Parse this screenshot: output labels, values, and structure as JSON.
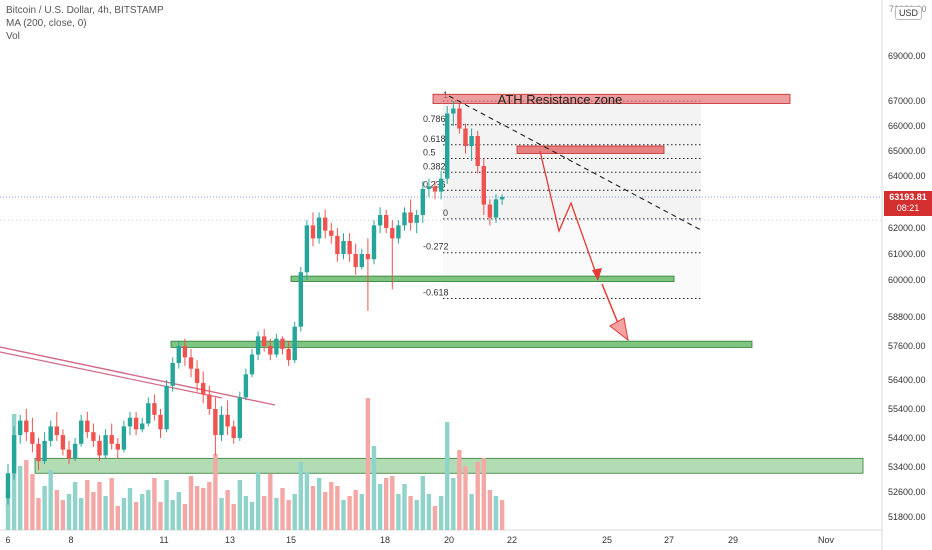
{
  "legend": {
    "symbol": "Bitcoin / U.S. Dollar, 4h, BITSTAMP",
    "ma": "MA (200, close, 0)",
    "vol": "Vol"
  },
  "currency_button": "USD",
  "last_price": "63193.81",
  "countdown": "08:21",
  "colors": {
    "bull": "#26a69a",
    "bear": "#ef5350",
    "vol_bull": "#8fd3cb",
    "vol_bear": "#f4a8a6",
    "zone_red": "#e57373",
    "zone_green": "#66bb6a",
    "arrow": "#e53935",
    "trendline": "#d46a86"
  },
  "chart_data": {
    "type": "candlestick",
    "symbol": "BTCUSD",
    "exchange": "BITSTAMP",
    "interval": "4h",
    "ylim": [
      51400,
      71000
    ],
    "y_ticks": [
      51800,
      52600,
      53400,
      54400,
      55400,
      56400,
      57600,
      58800,
      60000,
      61000,
      62000,
      63000,
      64000,
      65000,
      66000,
      67000,
      69000
    ],
    "y_tick_labels": [
      "51800.00",
      "52600.00",
      "53400.00",
      "54400.00",
      "55400.00",
      "56400.00",
      "57600.00",
      "58800.00",
      "60000.00",
      "61000.00",
      "62000.00",
      "63000.00",
      "64000.00",
      "65000.00",
      "66000.00",
      "67000.00",
      "69000.00"
    ],
    "x_tick_labels": [
      "6",
      "8",
      "11",
      "13",
      "15",
      "18",
      "20",
      "22",
      "25",
      "27",
      "29",
      "Nov"
    ],
    "candles": [
      [
        52400,
        53500,
        52200,
        53200
      ],
      [
        53200,
        54800,
        53000,
        54500
      ],
      [
        54500,
        55200,
        54200,
        55000
      ],
      [
        55000,
        55400,
        54300,
        54600
      ],
      [
        54600,
        55100,
        53900,
        54200
      ],
      [
        54200,
        54400,
        53300,
        53600
      ],
      [
        53600,
        54600,
        53500,
        54300
      ],
      [
        54300,
        55000,
        54100,
        54800
      ],
      [
        54800,
        55300,
        54300,
        54500
      ],
      [
        54500,
        54700,
        53800,
        54000
      ],
      [
        54000,
        54300,
        53500,
        53700
      ],
      [
        53700,
        54400,
        53600,
        54200
      ],
      [
        54200,
        55200,
        54100,
        55000
      ],
      [
        55000,
        55300,
        54400,
        54600
      ],
      [
        54600,
        54900,
        54100,
        54300
      ],
      [
        54300,
        54500,
        53600,
        53800
      ],
      [
        53800,
        54700,
        53700,
        54500
      ],
      [
        54500,
        54900,
        54000,
        54200
      ],
      [
        54200,
        54400,
        53700,
        54000
      ],
      [
        54000,
        55000,
        53900,
        54800
      ],
      [
        54800,
        55300,
        54500,
        55100
      ],
      [
        55100,
        55300,
        54500,
        54700
      ],
      [
        54700,
        55100,
        54600,
        54900
      ],
      [
        54900,
        55800,
        54800,
        55600
      ],
      [
        55600,
        55900,
        55000,
        55200
      ],
      [
        55200,
        55400,
        54400,
        54700
      ],
      [
        54700,
        56400,
        54600,
        56200
      ],
      [
        56200,
        57200,
        56000,
        57000
      ],
      [
        57000,
        57800,
        56800,
        57600
      ],
      [
        57600,
        57900,
        56900,
        57200
      ],
      [
        57200,
        57500,
        56500,
        56800
      ],
      [
        56800,
        57100,
        56000,
        56300
      ],
      [
        56300,
        56700,
        55600,
        55900
      ],
      [
        55900,
        56200,
        55200,
        55400
      ],
      [
        55400,
        55800,
        53800,
        54500
      ],
      [
        54500,
        55500,
        54300,
        55200
      ],
      [
        55200,
        55700,
        54500,
        54800
      ],
      [
        54800,
        55000,
        54200,
        54400
      ],
      [
        54400,
        56000,
        54300,
        55800
      ],
      [
        55800,
        56800,
        55700,
        56600
      ],
      [
        56600,
        57500,
        56500,
        57300
      ],
      [
        57300,
        58200,
        57100,
        58000
      ],
      [
        58000,
        58300,
        57400,
        57600
      ],
      [
        57600,
        57900,
        57100,
        57300
      ],
      [
        57300,
        58100,
        57200,
        57900
      ],
      [
        57900,
        58000,
        57300,
        57500
      ],
      [
        57500,
        57800,
        56900,
        57100
      ],
      [
        57100,
        58600,
        57000,
        58400
      ],
      [
        58400,
        60500,
        58200,
        60300
      ],
      [
        60300,
        62300,
        60000,
        62100
      ],
      [
        62100,
        62600,
        61300,
        61600
      ],
      [
        61600,
        62600,
        61400,
        62400
      ],
      [
        62400,
        62700,
        61600,
        61900
      ],
      [
        61900,
        62200,
        61400,
        61700
      ],
      [
        61700,
        62000,
        60700,
        61000
      ],
      [
        61000,
        61800,
        60800,
        61500
      ],
      [
        61500,
        61800,
        60700,
        61000
      ],
      [
        61000,
        61400,
        60200,
        60500
      ],
      [
        60500,
        61200,
        60400,
        61000
      ],
      [
        61000,
        61600,
        59000,
        60800
      ],
      [
        60800,
        62300,
        60600,
        62100
      ],
      [
        62100,
        62800,
        61800,
        62500
      ],
      [
        62500,
        62700,
        61800,
        62000
      ],
      [
        62000,
        62300,
        59700,
        61600
      ],
      [
        61600,
        62300,
        61400,
        62100
      ],
      [
        62100,
        62800,
        61900,
        62600
      ],
      [
        62600,
        63100,
        61900,
        62200
      ],
      [
        62200,
        62700,
        61800,
        62500
      ],
      [
        62500,
        63800,
        62200,
        63500
      ],
      [
        63500,
        63900,
        63200,
        63600
      ],
      [
        63600,
        63800,
        63100,
        63400
      ],
      [
        63400,
        64200,
        63100,
        63900
      ],
      [
        63900,
        66800,
        63700,
        66500
      ],
      [
        66500,
        67000,
        66000,
        66700
      ],
      [
        66700,
        66900,
        65700,
        65900
      ],
      [
        65900,
        66100,
        64900,
        65200
      ],
      [
        65200,
        65900,
        64600,
        65600
      ],
      [
        65600,
        65800,
        64100,
        64400
      ],
      [
        64400,
        64700,
        62500,
        62900
      ],
      [
        62900,
        63100,
        62100,
        62400
      ],
      [
        62400,
        63300,
        62200,
        63100
      ],
      [
        63100,
        63300,
        62900,
        63194
      ]
    ],
    "volumes": [
      [
        2.0,
        1
      ],
      [
        5.8,
        1
      ],
      [
        3.2,
        1
      ],
      [
        3.5,
        0
      ],
      [
        2.8,
        0
      ],
      [
        1.6,
        0
      ],
      [
        2.2,
        1
      ],
      [
        3.0,
        1
      ],
      [
        2.0,
        0
      ],
      [
        1.5,
        0
      ],
      [
        1.8,
        1
      ],
      [
        2.4,
        1
      ],
      [
        1.6,
        1
      ],
      [
        2.5,
        0
      ],
      [
        1.9,
        0
      ],
      [
        2.4,
        0
      ],
      [
        1.7,
        1
      ],
      [
        2.6,
        0
      ],
      [
        1.2,
        0
      ],
      [
        1.6,
        1
      ],
      [
        2.1,
        1
      ],
      [
        1.4,
        0
      ],
      [
        1.8,
        1
      ],
      [
        2.0,
        1
      ],
      [
        2.6,
        0
      ],
      [
        1.4,
        0
      ],
      [
        2.5,
        1
      ],
      [
        1.5,
        1
      ],
      [
        1.9,
        1
      ],
      [
        1.3,
        0
      ],
      [
        2.7,
        0
      ],
      [
        2.2,
        0
      ],
      [
        2.1,
        0
      ],
      [
        2.4,
        0
      ],
      [
        3.8,
        0
      ],
      [
        1.6,
        1
      ],
      [
        2.0,
        0
      ],
      [
        1.3,
        0
      ],
      [
        2.5,
        1
      ],
      [
        1.7,
        1
      ],
      [
        1.4,
        1
      ],
      [
        2.9,
        1
      ],
      [
        1.7,
        0
      ],
      [
        2.8,
        0
      ],
      [
        1.6,
        1
      ],
      [
        2.1,
        0
      ],
      [
        1.5,
        0
      ],
      [
        1.8,
        1
      ],
      [
        3.4,
        1
      ],
      [
        2.9,
        1
      ],
      [
        2.2,
        0
      ],
      [
        2.6,
        1
      ],
      [
        1.9,
        0
      ],
      [
        2.4,
        0
      ],
      [
        2.2,
        0
      ],
      [
        1.5,
        1
      ],
      [
        1.7,
        0
      ],
      [
        2.0,
        0
      ],
      [
        1.8,
        1
      ],
      [
        6.6,
        0
      ],
      [
        4.2,
        1
      ],
      [
        2.3,
        1
      ],
      [
        2.6,
        0
      ],
      [
        2.7,
        0
      ],
      [
        1.8,
        1
      ],
      [
        2.3,
        1
      ],
      [
        1.7,
        0
      ],
      [
        1.5,
        1
      ],
      [
        2.7,
        1
      ],
      [
        1.8,
        1
      ],
      [
        1.2,
        0
      ],
      [
        1.7,
        1
      ],
      [
        5.4,
        1
      ],
      [
        2.6,
        1
      ],
      [
        4.0,
        0
      ],
      [
        3.2,
        0
      ],
      [
        1.8,
        1
      ],
      [
        3.4,
        0
      ],
      [
        3.6,
        0
      ],
      [
        2.0,
        0
      ],
      [
        1.7,
        1
      ],
      [
        1.5,
        0
      ]
    ],
    "ma200": "out of view",
    "annotations": [
      {
        "type": "zone",
        "label": "ATH Resistance zone",
        "y_range": [
          66900,
          67300
        ]
      },
      {
        "type": "zone",
        "y_range": [
          64900,
          65200
        ]
      },
      {
        "type": "zone",
        "y_range": [
          59950,
          60150
        ]
      },
      {
        "type": "zone",
        "y_range": [
          57550,
          57800
        ]
      },
      {
        "type": "zone",
        "y_range": [
          53200,
          53700
        ]
      }
    ],
    "fibonacci": [
      {
        "label": "1",
        "price": 67000
      },
      {
        "label": "0.786",
        "price": 66050
      },
      {
        "label": "0.618",
        "price": 65250
      },
      {
        "label": "0.5",
        "price": 64700
      },
      {
        "label": "0.382",
        "price": 64150
      },
      {
        "label": "0.236",
        "price": 63450
      },
      {
        "label": "0",
        "price": 62350
      },
      {
        "label": "-0.272",
        "price": 61050
      },
      {
        "label": "-0.618",
        "price": 59400
      }
    ],
    "projection_path": [
      [
        0,
        65100
      ],
      [
        3,
        62300
      ],
      [
        5,
        63500
      ],
      [
        9,
        60000
      ]
    ],
    "projection_arrow_target": 57600
  }
}
